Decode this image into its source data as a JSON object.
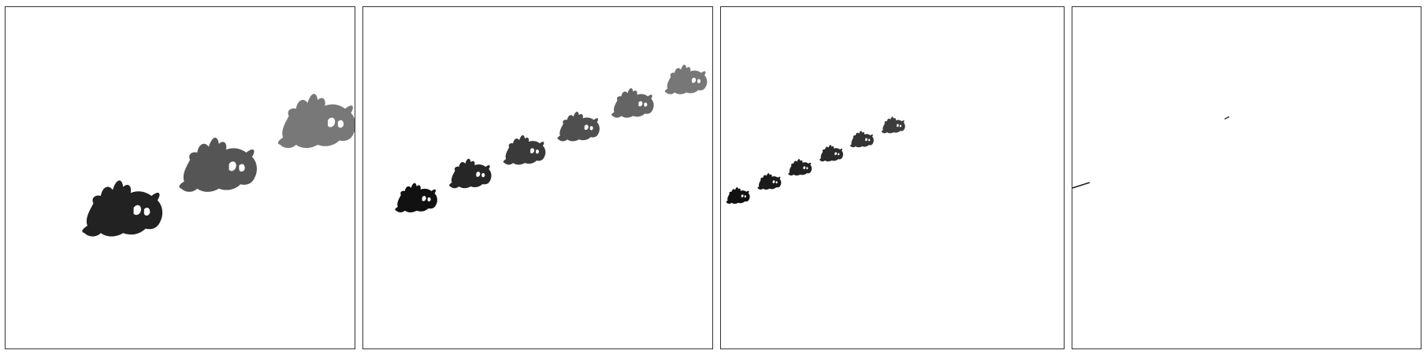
{
  "figure": {
    "panel_count": 4,
    "panels": [
      {
        "id": "panel-1",
        "visible_copies": 3
      },
      {
        "id": "panel-2",
        "visible_copies": 6
      },
      {
        "id": "panel-3",
        "visible_copies": 6
      },
      {
        "id": "panel-4",
        "visible_copies": 2
      }
    ],
    "colors": {
      "background": "#ffffff",
      "frame": "#333333",
      "darkest_copy": "#111111",
      "lightest_copy": "#777777"
    }
  }
}
